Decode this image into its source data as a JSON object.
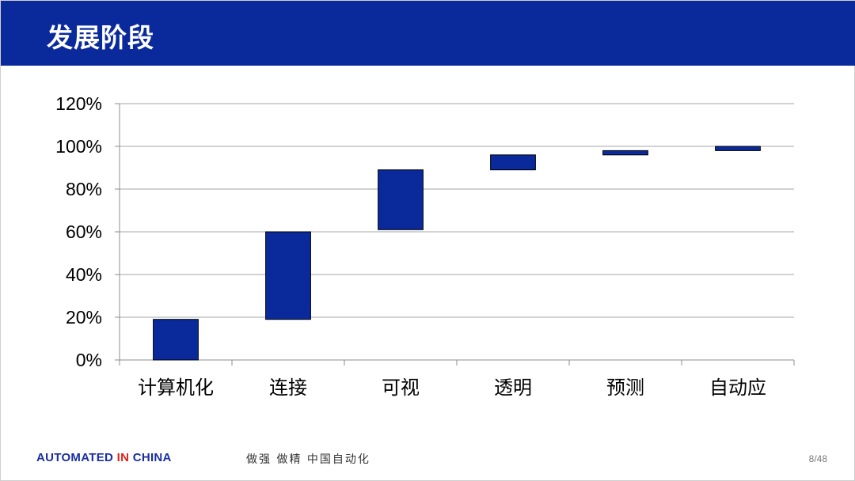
{
  "slide": {
    "title": "发展阶段",
    "footer": {
      "brand_part1": "AUTOMATED",
      "brand_part2": "IN",
      "brand_part3": "CHINA",
      "slogan": "做强 做精 中国自动化",
      "page": "8/48"
    },
    "colors": {
      "header": "#0a2a9c",
      "bar": "#0a2a9c",
      "brand_red": "#e1211b"
    }
  },
  "chart_data": {
    "type": "bar",
    "subtype": "waterfall",
    "categories": [
      "计算机化",
      "连接",
      "可视",
      "透明",
      "预测",
      "自动应"
    ],
    "ranges": [
      [
        0,
        19
      ],
      [
        19,
        60
      ],
      [
        61,
        89
      ],
      [
        89,
        96
      ],
      [
        96,
        98
      ],
      [
        98,
        100
      ]
    ],
    "ylim": [
      0,
      120
    ],
    "yticks": [
      0,
      20,
      40,
      60,
      80,
      100,
      120
    ],
    "ytick_labels": [
      "0%",
      "20%",
      "40%",
      "60%",
      "80%",
      "100%",
      "120%"
    ],
    "grid": true,
    "legend": "none"
  }
}
